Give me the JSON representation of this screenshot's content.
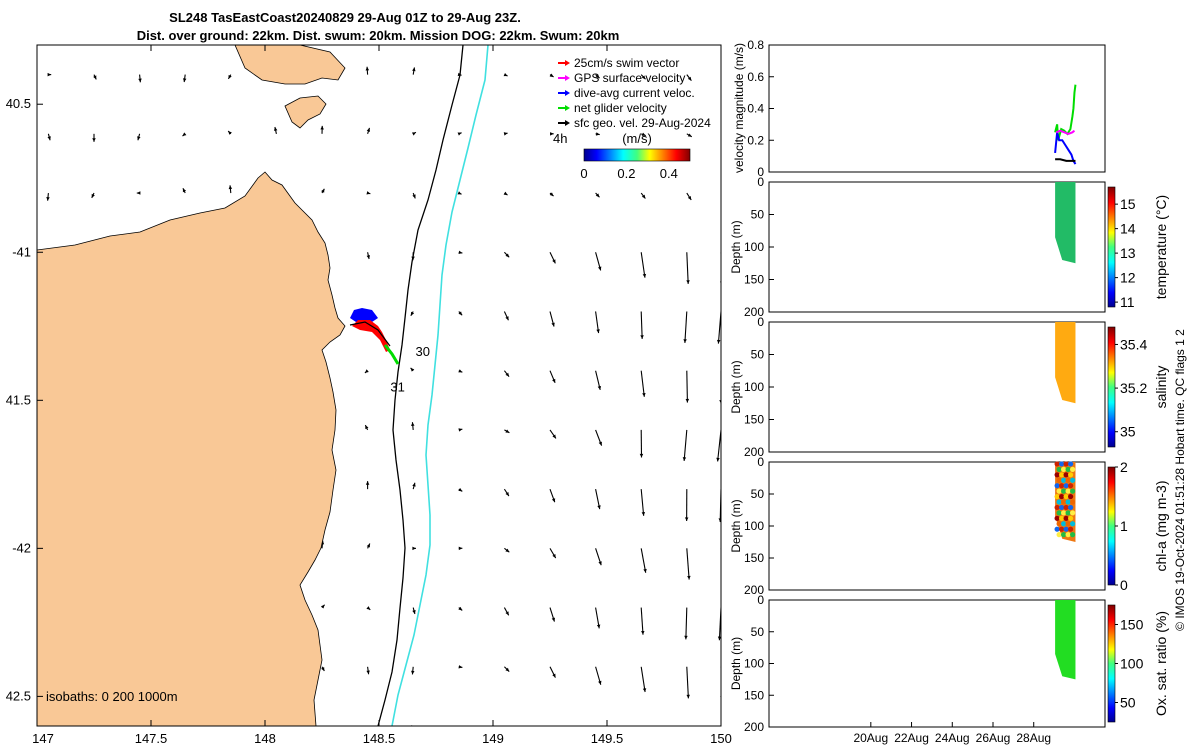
{
  "header": {
    "title_line1": "SL248 TasEastCoast20240829 29-Aug 01Z to 29-Aug 23Z.",
    "title_line2": "Dist. over ground: 22km. Dist. swum: 20km. Mission DOG: 22km. Swum: 20km"
  },
  "footer": {
    "credit": "© IMOS 19-Oct-2024 01:51:28 Hobart time. QC flags 1  2"
  },
  "colors": {
    "land": "#f9c896",
    "isobath": "#000000",
    "isobath_1000": "#40e0e0",
    "swim": "#ff0000",
    "gps": "#ff00ff",
    "dive": "#0000ff",
    "net": "#00dd00",
    "geo": "#000000",
    "temperature_fill": "#22bb66",
    "salinity_fill": "#ffaa11",
    "oxygen_fill": "#22dd22"
  },
  "chart_data": [
    {
      "type": "map",
      "xlim": [
        147,
        150
      ],
      "ylim": [
        -42.6,
        -40.3
      ],
      "x_ticks": [
        147,
        147.5,
        148,
        148.5,
        149,
        149.5,
        150
      ],
      "x_tick_labels": [
        "147",
        "147.5",
        "148",
        "148.5",
        "149",
        "149.5",
        "150"
      ],
      "y_ticks": [
        -40.5,
        -41,
        -41.5,
        -42,
        -42.5
      ],
      "y_tick_labels": [
        "40.5",
        "-41",
        "41.5",
        "-42",
        "42.5"
      ],
      "legend": {
        "placement": "top-right",
        "entries": [
          {
            "label": "25cm/s swim vector",
            "color": "#ff0000"
          },
          {
            "label": "GPS surface velocity",
            "color": "#ff00ff"
          },
          {
            "label": "dive-avg current veloc.",
            "color": "#0000ff"
          },
          {
            "label": "net glider velocity",
            "color": "#00dd00"
          },
          {
            "label": "sfc geo. vel. 29-Aug-2024",
            "color": "#000000"
          }
        ],
        "extra_label": "4h",
        "colorbar_label": "(m/s)",
        "colorbar_ticks": [
          "0",
          "0.2",
          "0.4"
        ],
        "colorbar_range": [
          0,
          0.5
        ]
      },
      "day_labels": [
        {
          "text": "30",
          "lon": 148.66,
          "lat": -41.35
        },
        {
          "text": "31",
          "lon": 148.55,
          "lat": -41.47
        }
      ],
      "isobath_note": "isobaths: 0   200  1000m",
      "glider_track": [
        {
          "lon": 148.43,
          "lat": -41.27
        },
        {
          "lon": 148.5,
          "lat": -41.28
        },
        {
          "lon": 148.55,
          "lat": -41.33
        },
        {
          "lon": 148.6,
          "lat": -41.4
        }
      ],
      "geo_velocity_field": {
        "lons": [
          147.05,
          147.25,
          147.45,
          147.65,
          147.85,
          148.05,
          148.25,
          148.45,
          148.65,
          148.85,
          149.05,
          149.25,
          149.45,
          149.65,
          149.85,
          150.0
        ],
        "lats": [
          -40.4,
          -40.6,
          -40.8,
          -41.0,
          -41.2,
          -41.4,
          -41.6,
          -41.8,
          -42.0,
          -42.2,
          -42.4,
          -42.6
        ]
      }
    },
    {
      "type": "line",
      "ylabel": "velocity magnitude (m/s)",
      "ylim": [
        0,
        0.8
      ],
      "y_ticks": [
        0,
        0.2,
        0.4,
        0.6,
        0.8
      ],
      "x_day_range": [
        15,
        31.5
      ],
      "x_ticks": [
        20,
        22,
        24,
        26,
        28
      ],
      "x_tick_labels": [
        "20Aug",
        "22Aug",
        "24Aug",
        "26Aug",
        "28Aug"
      ],
      "series": [
        {
          "color": "#00dd00",
          "x": [
            29.05,
            29.15,
            29.2,
            29.35,
            29.5,
            29.65,
            29.8,
            29.9,
            29.95,
            30.0,
            30.05
          ],
          "y": [
            0.25,
            0.3,
            0.2,
            0.27,
            0.26,
            0.24,
            0.27,
            0.35,
            0.4,
            0.5,
            0.55
          ]
        },
        {
          "color": "#0000ff",
          "x": [
            29.05,
            29.15,
            29.25,
            29.4,
            29.55,
            29.7,
            29.85,
            29.95,
            30.05
          ],
          "y": [
            0.12,
            0.25,
            0.2,
            0.2,
            0.17,
            0.14,
            0.11,
            0.07,
            0.05
          ]
        },
        {
          "color": "#ff00ff",
          "x": [
            29.1,
            29.3,
            29.5,
            29.7,
            29.9,
            30.0
          ],
          "y": [
            0.25,
            0.26,
            0.25,
            0.24,
            0.25,
            0.26
          ]
        },
        {
          "color": "#000000",
          "x": [
            29.05,
            29.3,
            29.6,
            29.9,
            30.05
          ],
          "y": [
            0.08,
            0.08,
            0.07,
            0.07,
            0.07
          ]
        }
      ]
    },
    {
      "type": "heatmap",
      "variable": "temperature",
      "colorbar_label": "temperature (°C)",
      "colorbar_range": [
        10.8,
        15.7
      ],
      "colorbar_ticks": [
        11,
        12,
        13,
        14,
        15
      ],
      "ylabel": "Depth (m)",
      "ylim": [
        200,
        0
      ],
      "y_ticks": [
        0,
        50,
        100,
        150,
        200
      ],
      "x_day_range": [
        15,
        31.5
      ],
      "data_extent": {
        "x": [
          29.05,
          30.05
        ],
        "depth_max": [
          85,
          125
        ]
      }
    },
    {
      "type": "heatmap",
      "variable": "salinity",
      "colorbar_label": "salinity",
      "colorbar_range": [
        34.93,
        35.48
      ],
      "colorbar_ticks": [
        35,
        35.2,
        35.4
      ],
      "ylabel": "Depth (m)",
      "ylim": [
        200,
        0
      ],
      "y_ticks": [
        0,
        50,
        100,
        150,
        200
      ],
      "x_day_range": [
        15,
        31.5
      ],
      "data_extent": {
        "x": [
          29.05,
          30.05
        ],
        "depth_max": [
          85,
          125
        ]
      }
    },
    {
      "type": "heatmap",
      "variable": "chlorophyll",
      "colorbar_label": "chl-a (mg m-3)",
      "colorbar_range": [
        0,
        2
      ],
      "colorbar_ticks": [
        0,
        1,
        2
      ],
      "ylabel": "Depth (m)",
      "ylim": [
        200,
        0
      ],
      "y_ticks": [
        0,
        50,
        100,
        150,
        200
      ],
      "x_day_range": [
        15,
        31.5
      ],
      "data_extent": {
        "x": [
          29.05,
          30.05
        ],
        "depth_max": [
          85,
          125
        ]
      }
    },
    {
      "type": "heatmap",
      "variable": "oxygen",
      "colorbar_label": "Ox. sat. ratio (%)",
      "colorbar_range": [
        25,
        175
      ],
      "colorbar_ticks": [
        50,
        100,
        150
      ],
      "ylabel": "Depth (m)",
      "ylim": [
        200,
        0
      ],
      "y_ticks": [
        0,
        50,
        100,
        150,
        200
      ],
      "x_ticks": [
        20,
        22,
        24,
        26,
        28
      ],
      "x_tick_labels": [
        "20Aug",
        "22Aug",
        "24Aug",
        "26Aug",
        "28Aug"
      ],
      "x_day_range": [
        15,
        31.5
      ],
      "data_extent": {
        "x": [
          29.05,
          30.05
        ],
        "depth_max": [
          85,
          125
        ]
      }
    }
  ]
}
